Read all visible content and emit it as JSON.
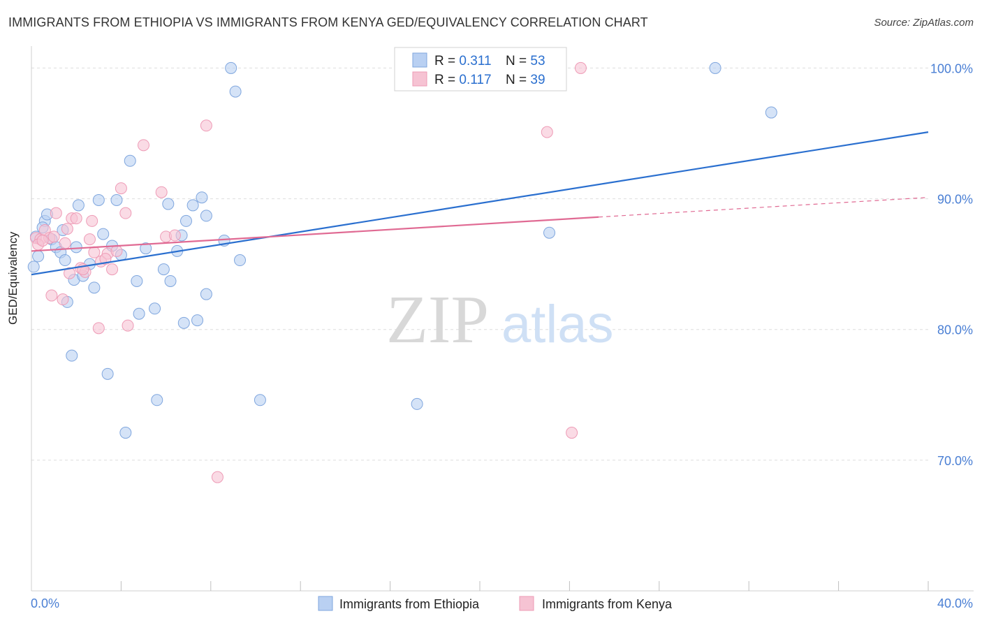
{
  "header": {
    "title": "IMMIGRANTS FROM ETHIOPIA VS IMMIGRANTS FROM KENYA GED/EQUIVALENCY CORRELATION CHART",
    "source": "Source: ZipAtlas.com"
  },
  "watermark": {
    "zip": "ZIP",
    "atlas": "atlas"
  },
  "colors": {
    "ethiopia_fill": "#b9d0f2",
    "ethiopia_stroke": "#7fa6de",
    "ethiopia_line": "#2a6fcf",
    "kenya_fill": "#f6c3d3",
    "kenya_stroke": "#ee9bb6",
    "kenya_line": "#e06a93",
    "tick_label": "#4a7fd4",
    "grid": "#dddddd"
  },
  "chart_data": {
    "type": "scatter",
    "title": "IMMIGRANTS FROM ETHIOPIA VS IMMIGRANTS FROM KENYA GED/EQUIVALENCY CORRELATION CHART",
    "xlabel": "",
    "ylabel": "GED/Equivalency",
    "xlim": [
      0,
      40
    ],
    "ylim": [
      60,
      102
    ],
    "x_tick_labels": [
      "0.0%",
      "40.0%"
    ],
    "y_ticks": [
      70,
      80,
      90,
      100
    ],
    "y_tick_labels": [
      "70.0%",
      "80.0%",
      "90.0%",
      "100.0%"
    ],
    "grid": true,
    "legend": {
      "position": "top-center",
      "entries": [
        {
          "r_label": "R = ",
          "r_value": "0.311",
          "n_label": "N = ",
          "n_value": "53"
        },
        {
          "r_label": "R = ",
          "r_value": "0.117",
          "n_label": "N = ",
          "n_value": "39"
        }
      ]
    },
    "bottom_legend": [
      "Immigrants from Ethiopia",
      "Immigrants from Kenya"
    ],
    "series": [
      {
        "name": "Immigrants from Ethiopia",
        "r": 0.311,
        "n": 53,
        "trend": {
          "x": [
            0,
            40
          ],
          "y": [
            84.2,
            95.1
          ]
        },
        "points": [
          [
            0.1,
            84.8
          ],
          [
            0.2,
            87.1
          ],
          [
            0.3,
            85.6
          ],
          [
            0.6,
            88.3
          ],
          [
            0.7,
            88.8
          ],
          [
            0.9,
            86.9
          ],
          [
            1.1,
            86.3
          ],
          [
            1.3,
            85.9
          ],
          [
            1.5,
            85.3
          ],
          [
            1.6,
            82.1
          ],
          [
            1.8,
            78.0
          ],
          [
            1.9,
            83.8
          ],
          [
            2.0,
            86.3
          ],
          [
            2.1,
            89.5
          ],
          [
            2.3,
            84.1
          ],
          [
            2.6,
            85.0
          ],
          [
            2.8,
            83.2
          ],
          [
            3.0,
            89.9
          ],
          [
            3.2,
            87.3
          ],
          [
            3.4,
            76.6
          ],
          [
            3.6,
            86.4
          ],
          [
            3.8,
            89.9
          ],
          [
            4.0,
            85.7
          ],
          [
            4.2,
            72.1
          ],
          [
            4.4,
            92.9
          ],
          [
            4.7,
            83.7
          ],
          [
            4.8,
            81.2
          ],
          [
            5.1,
            86.2
          ],
          [
            5.5,
            81.6
          ],
          [
            5.6,
            74.6
          ],
          [
            5.9,
            84.6
          ],
          [
            6.1,
            89.6
          ],
          [
            6.2,
            83.7
          ],
          [
            6.5,
            86.0
          ],
          [
            6.7,
            87.2
          ],
          [
            6.8,
            80.5
          ],
          [
            6.9,
            88.3
          ],
          [
            7.2,
            89.5
          ],
          [
            7.4,
            80.7
          ],
          [
            7.6,
            90.1
          ],
          [
            7.8,
            88.7
          ],
          [
            7.8,
            82.7
          ],
          [
            8.6,
            86.8
          ],
          [
            8.9,
            100.0
          ],
          [
            9.1,
            98.2
          ],
          [
            9.3,
            85.3
          ],
          [
            10.2,
            74.6
          ],
          [
            17.2,
            74.3
          ],
          [
            23.1,
            87.4
          ],
          [
            30.5,
            100.0
          ],
          [
            33.0,
            96.6
          ],
          [
            0.5,
            87.8
          ],
          [
            1.4,
            87.6
          ]
        ]
      },
      {
        "name": "Immigrants from Kenya",
        "r": 0.117,
        "n": 39,
        "trend": {
          "x": [
            0,
            25.3
          ],
          "y": [
            86.0,
            88.6
          ],
          "dashed_x": [
            25.3,
            40
          ],
          "dashed_y": [
            88.6,
            90.1
          ]
        },
        "points": [
          [
            0.2,
            87.0
          ],
          [
            0.4,
            86.9
          ],
          [
            0.6,
            87.6
          ],
          [
            0.8,
            87.0
          ],
          [
            0.9,
            82.6
          ],
          [
            1.1,
            88.9
          ],
          [
            1.4,
            82.3
          ],
          [
            1.5,
            86.6
          ],
          [
            1.6,
            87.7
          ],
          [
            1.7,
            84.3
          ],
          [
            1.8,
            88.5
          ],
          [
            2.0,
            88.5
          ],
          [
            2.2,
            84.7
          ],
          [
            2.4,
            84.4
          ],
          [
            2.6,
            86.9
          ],
          [
            2.7,
            88.3
          ],
          [
            2.8,
            85.9
          ],
          [
            3.0,
            80.1
          ],
          [
            3.1,
            85.2
          ],
          [
            3.4,
            85.8
          ],
          [
            3.6,
            84.6
          ],
          [
            3.8,
            86.0
          ],
          [
            4.0,
            90.8
          ],
          [
            4.2,
            88.9
          ],
          [
            4.3,
            80.3
          ],
          [
            5.0,
            94.1
          ],
          [
            5.8,
            90.5
          ],
          [
            6.0,
            87.1
          ],
          [
            6.4,
            87.2
          ],
          [
            7.8,
            95.6
          ],
          [
            8.3,
            68.7
          ],
          [
            23.0,
            95.1
          ],
          [
            24.1,
            72.1
          ],
          [
            24.5,
            100.0
          ],
          [
            0.3,
            86.5
          ],
          [
            1.0,
            87.1
          ],
          [
            2.3,
            84.6
          ],
          [
            3.3,
            85.4
          ],
          [
            0.5,
            86.8
          ]
        ]
      }
    ]
  }
}
